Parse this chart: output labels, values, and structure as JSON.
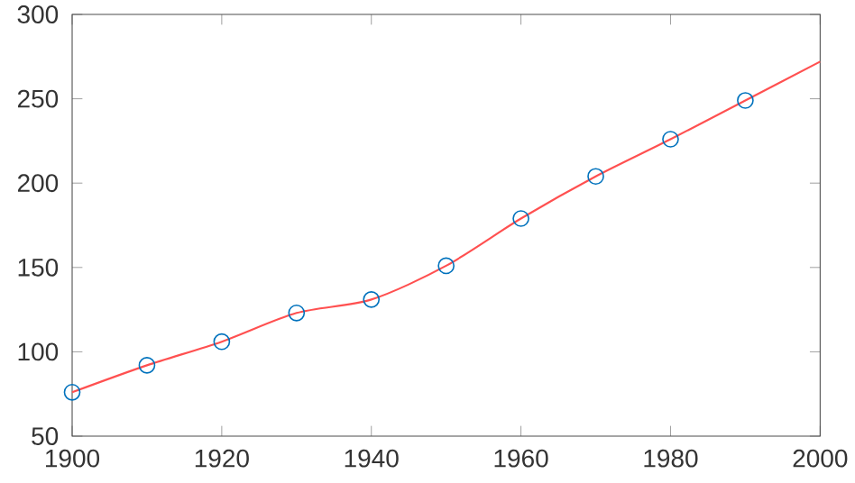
{
  "chart_data": {
    "type": "line",
    "series": [
      {
        "type": "scatter",
        "marker": "circle",
        "color": "#0072bd",
        "x": [
          1900,
          1910,
          1920,
          1930,
          1940,
          1950,
          1960,
          1970,
          1980,
          1990
        ],
        "values": [
          76,
          92,
          106,
          123,
          131,
          151,
          179,
          204,
          226,
          249
        ]
      },
      {
        "marker": "none",
        "color": "#ff5050",
        "x": [
          1900,
          1910,
          1920,
          1930,
          1940,
          1950,
          1960,
          1970,
          1980,
          1990,
          2000
        ],
        "values": [
          76,
          92,
          106,
          123,
          131,
          151,
          179,
          204,
          226,
          249,
          272
        ]
      }
    ],
    "xlim": [
      1900,
      2000
    ],
    "ylim": [
      50,
      300
    ],
    "xticks": [
      1900,
      1920,
      1940,
      1960,
      1980,
      2000
    ],
    "yticks": [
      50,
      100,
      150,
      200,
      250,
      300
    ],
    "grid": false
  }
}
